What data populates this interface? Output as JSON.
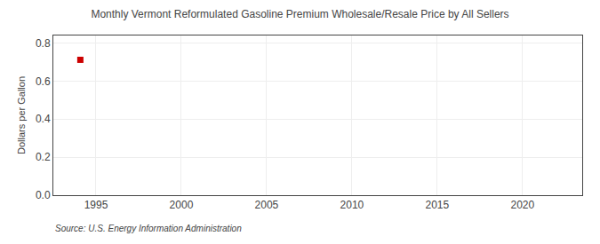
{
  "chart_data": {
    "type": "scatter",
    "title": "Monthly Vermont Reformulated Gasoline Premium Wholesale/Resale Price by All Sellers",
    "ylabel": "Dollars per Gallon",
    "source": "Source: U.S. Energy Information Administration",
    "x": [
      1994.083
    ],
    "values": [
      0.712
    ],
    "color": "#cc0000",
    "marker": "square",
    "xlim": [
      1992.5,
      2023.5
    ],
    "xticks": [
      1995,
      2000,
      2005,
      2010,
      2015,
      2020
    ],
    "ylim": [
      0.0,
      0.84
    ],
    "yticks": [
      {
        "value": 0.0,
        "label": "0.0"
      },
      0.2,
      0.4,
      0.6,
      0.8
    ],
    "grid": true
  }
}
